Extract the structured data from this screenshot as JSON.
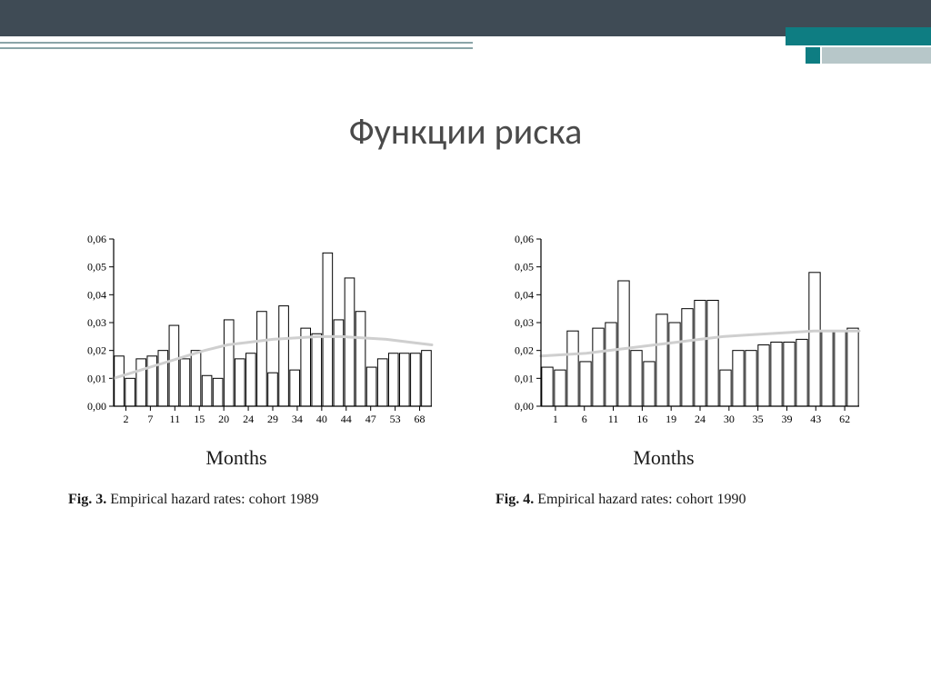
{
  "layout": {
    "topband_color": "#3f4b55",
    "decor_line_color": "#8aa5a8",
    "teal_color": "#0e7d82",
    "lightgray_block_color": "#b7c7c9",
    "title_color": "#4a4a4a"
  },
  "title": "Функции риска",
  "chart_left": {
    "type": "bar",
    "xlabel": "Months",
    "caption_prefix": "Fig. 3.",
    "caption_text": "Empirical hazard rates: cohort 1989",
    "ylim": [
      0,
      0.06
    ],
    "ytick_step": 0.01,
    "yticks_labels": [
      "0,00",
      "0,01",
      "0,02",
      "0,03",
      "0,04",
      "0,05",
      "0,06"
    ],
    "xticks_shown": [
      "2",
      "7",
      "11",
      "15",
      "20",
      "24",
      "29",
      "34",
      "40",
      "44",
      "47",
      "53",
      "68"
    ],
    "bar_color": "#ffffff",
    "bar_border_color": "#000000",
    "bar_border_width": 1,
    "axis_color": "#000000",
    "tick_font_size": 12,
    "values": [
      0.018,
      0.01,
      0.017,
      0.018,
      0.02,
      0.029,
      0.017,
      0.02,
      0.011,
      0.01,
      0.031,
      0.017,
      0.019,
      0.034,
      0.012,
      0.036,
      0.013,
      0.028,
      0.026,
      0.055,
      0.031,
      0.046,
      0.034,
      0.014,
      0.017,
      0.019,
      0.019,
      0.019,
      0.02
    ],
    "trend_color": "#cfcfcf",
    "trend_width": 3,
    "trend": [
      0.01,
      0.0125,
      0.015,
      0.0175,
      0.02,
      0.022,
      0.023,
      0.024,
      0.0245,
      0.025,
      0.025,
      0.0245,
      0.024,
      0.023,
      0.022
    ]
  },
  "chart_right": {
    "type": "bar",
    "xlabel": "Months",
    "caption_prefix": "Fig. 4.",
    "caption_text": "Empirical hazard rates: cohort 1990",
    "ylim": [
      0,
      0.06
    ],
    "ytick_step": 0.01,
    "yticks_labels": [
      "0,00",
      "0,01",
      "0,02",
      "0,03",
      "0,04",
      "0,05",
      "0,06"
    ],
    "xticks_shown": [
      "1",
      "6",
      "11",
      "16",
      "19",
      "24",
      "30",
      "35",
      "39",
      "43",
      "62"
    ],
    "bar_color": "#ffffff",
    "bar_border_color": "#000000",
    "bar_border_width": 1,
    "axis_color": "#000000",
    "tick_font_size": 12,
    "values": [
      0.014,
      0.013,
      0.027,
      0.016,
      0.028,
      0.03,
      0.045,
      0.02,
      0.016,
      0.033,
      0.03,
      0.035,
      0.038,
      0.038,
      0.013,
      0.02,
      0.02,
      0.022,
      0.023,
      0.023,
      0.024,
      0.048,
      0.027,
      0.027,
      0.028
    ],
    "trend_color": "#cfcfcf",
    "trend_width": 3,
    "trend": [
      0.018,
      0.0185,
      0.019,
      0.02,
      0.021,
      0.022,
      0.023,
      0.024,
      0.025,
      0.0255,
      0.026,
      0.0265,
      0.027,
      0.027,
      0.027
    ]
  }
}
